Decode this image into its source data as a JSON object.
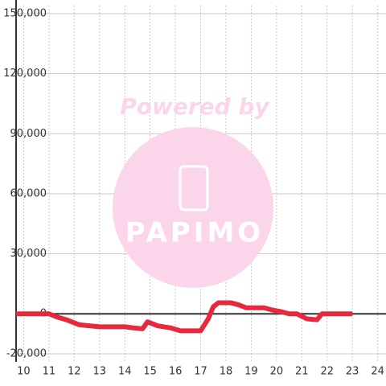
{
  "chart_data": {
    "type": "line",
    "x": [
      9.7,
      11,
      11.3,
      11.7,
      12.2,
      13,
      14,
      14.3,
      14.7,
      14.9,
      15.3,
      15.8,
      16.2,
      17,
      17.3,
      17.5,
      17.7,
      18.2,
      18.5,
      18.8,
      19.5,
      19.8,
      20.2,
      20.5,
      20.8,
      21.2,
      21.6,
      21.8,
      22.5,
      23
    ],
    "series": [
      {
        "color": "#e8283c",
        "values": [
          0,
          0,
          -1500,
          -3000,
          -5500,
          -6500,
          -6500,
          -7000,
          -7500,
          -4000,
          -6000,
          -7000,
          -8500,
          -8500,
          -2500,
          3500,
          5500,
          5500,
          4500,
          3000,
          3000,
          2000,
          1000,
          0,
          0,
          -2500,
          -3000,
          0,
          0,
          0
        ]
      }
    ],
    "xlim": [
      9.7,
      24.33
    ],
    "ylim": [
      -20000,
      150000
    ],
    "xticks": [
      10,
      11,
      12,
      13,
      14,
      15,
      16,
      17,
      18,
      19,
      20,
      21,
      22,
      23,
      24
    ],
    "yticks": [
      {
        "value": -20000,
        "label": "-20,000"
      },
      0,
      {
        "value": 30000,
        "label": "30,000"
      },
      {
        "value": 60000,
        "label": "60,000"
      },
      {
        "value": 90000,
        "label": "90,000"
      },
      {
        "value": 120000,
        "label": "120,000"
      },
      {
        "value": 150000,
        "label": "150,000"
      }
    ],
    "grid": true,
    "watermark": {
      "caption": "Powered by",
      "logo": "PAPIMO"
    }
  }
}
